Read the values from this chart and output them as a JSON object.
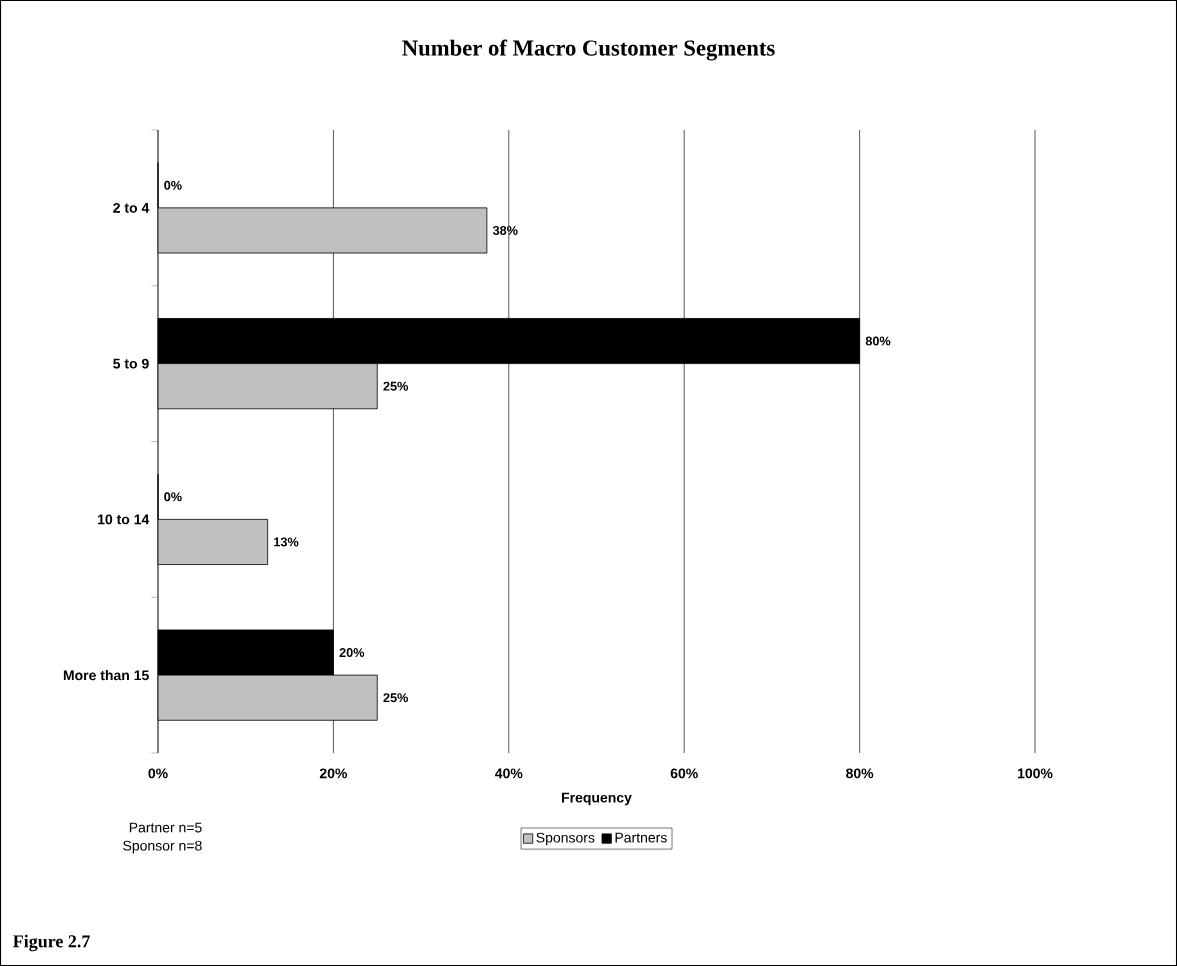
{
  "chart_data": {
    "type": "bar",
    "orientation": "horizontal",
    "title": "Number of Macro Customer Segments",
    "xlabel": "Frequency",
    "categories": [
      "2 to 4",
      "5 to 9",
      "10 to 14",
      "More than 15"
    ],
    "series": [
      {
        "name": "Partners",
        "color": "#000000",
        "values": [
          0,
          80,
          0,
          20
        ],
        "value_labels": [
          "0%",
          "80%",
          "0%",
          "20%"
        ]
      },
      {
        "name": "Sponsors",
        "color": "#c0c0c0",
        "values": [
          37.5,
          25,
          12.5,
          25
        ],
        "value_labels": [
          "38%",
          "25%",
          "13%",
          "25%"
        ]
      }
    ],
    "xlim": [
      0,
      100
    ],
    "xticks": [
      {
        "value": 0,
        "label": "0%"
      },
      {
        "value": 20,
        "label": "20%"
      },
      {
        "value": 40,
        "label": "40%"
      },
      {
        "value": 60,
        "label": "60%"
      },
      {
        "value": 80,
        "label": "80%"
      },
      {
        "value": 100,
        "label": "100%"
      }
    ],
    "grid": "x",
    "legend": "bottom",
    "annotations": [
      "Partner n=5",
      "Sponsor n=8",
      "Figure 2.7"
    ]
  }
}
